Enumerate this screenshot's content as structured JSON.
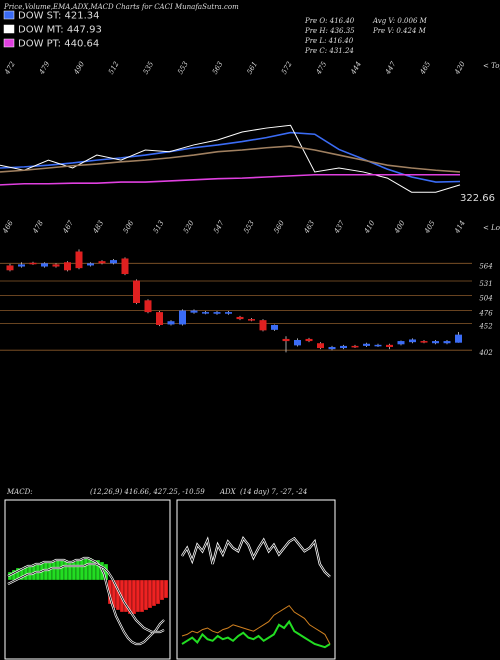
{
  "header": {
    "title": "Price,Volume,EMA,ADX,MACD Charts for CACI MunafaSutra.com",
    "legend": [
      {
        "name": "DOW ST: 421.34",
        "color": "#3b6cf5"
      },
      {
        "name": "DOW MT: 447.93",
        "color": "#ffffff"
      },
      {
        "name": "DOW PT: 440.64",
        "color": "#e040e0"
      }
    ],
    "pre": [
      "Pre  O: 416.40",
      "Pre  H: 436.35",
      "Pre  L: 416.40",
      "Pre  C: 431.24"
    ],
    "volume": [
      "Avg V: 0.006  M",
      "Pre  V: 0.424  M"
    ]
  },
  "chart_data": [
    {
      "type": "line",
      "ylim": [
        300,
        620
      ],
      "annotation": "322.66",
      "tops_label": "< Tops",
      "lows_label": "< Lows",
      "top_labels": [
        "472",
        "479",
        "490",
        "512",
        "535",
        "553",
        "563",
        "561",
        "572",
        "475",
        "444",
        "447",
        "465",
        "420"
      ],
      "bottom_labels": [
        "466",
        "478",
        "467",
        "483",
        "506",
        "513",
        "520",
        "547",
        "553",
        "560",
        "463",
        "437",
        "410",
        "400",
        "405",
        "414"
      ],
      "series": [
        {
          "name": "DOW ST: 421.34",
          "color": "#3b6cf5",
          "values": [
            428,
            430,
            433,
            437,
            442,
            446,
            451,
            457,
            464,
            469,
            475,
            482,
            491,
            488,
            461,
            444,
            426,
            412,
            403,
            404
          ]
        },
        {
          "name": "DOW MT: 447.93",
          "color": "#ffffff",
          "values": [
            433,
            424,
            442,
            428,
            451,
            442,
            460,
            457,
            469,
            478,
            492,
            499,
            504,
            421,
            428,
            421,
            410,
            385,
            385,
            398
          ]
        },
        {
          "name": "DOW PT: 440.64",
          "color": "#e040e0",
          "values": [
            398,
            400,
            400,
            401,
            401,
            403,
            403,
            405,
            407,
            409,
            410,
            412,
            414,
            416,
            416,
            416,
            416,
            416,
            416,
            416
          ]
        },
        {
          "name": "EMA",
          "color": "#a08060",
          "values": [
            421,
            424,
            428,
            432,
            435,
            439,
            442,
            446,
            451,
            457,
            460,
            464,
            467,
            460,
            451,
            442,
            433,
            428,
            424,
            421
          ]
        }
      ]
    },
    {
      "type": "candlestick",
      "ylim": [
        380,
        600
      ],
      "yticks": [
        564,
        531,
        504,
        476,
        452,
        402
      ],
      "up_color": "#3b6cf5",
      "down_color": "#e02020",
      "candles": [
        [
          560,
          563,
          549,
          551
        ],
        [
          558,
          566,
          556,
          562
        ],
        [
          565,
          567,
          561,
          563
        ],
        [
          558,
          566,
          556,
          564
        ],
        [
          562,
          564,
          556,
          558
        ],
        [
          566,
          568,
          549,
          551
        ],
        [
          586,
          590,
          553,
          555
        ],
        [
          560,
          566,
          558,
          564
        ],
        [
          568,
          570,
          562,
          564
        ],
        [
          564,
          572,
          562,
          570
        ],
        [
          573,
          575,
          542,
          544
        ],
        [
          532,
          534,
          488,
          490
        ],
        [
          495,
          497,
          471,
          473
        ],
        [
          473,
          475,
          447,
          449
        ],
        [
          450,
          458,
          448,
          456
        ],
        [
          450,
          478,
          448,
          476
        ],
        [
          472,
          478,
          470,
          476
        ],
        [
          471,
          475,
          469,
          473
        ],
        [
          470,
          475,
          468,
          473
        ],
        [
          470,
          475,
          468,
          473
        ],
        [
          464,
          466,
          458,
          460
        ],
        [
          460,
          462,
          456,
          458
        ],
        [
          458,
          460,
          437,
          439
        ],
        [
          440,
          450,
          438,
          449
        ],
        [
          423,
          428,
          398,
          419
        ],
        [
          411,
          424,
          409,
          421
        ],
        [
          423,
          425,
          417,
          419
        ],
        [
          415,
          417,
          404,
          406
        ],
        [
          404,
          410,
          402,
          408
        ],
        [
          406,
          412,
          404,
          410
        ],
        [
          410,
          412,
          406,
          408
        ],
        [
          410,
          416,
          408,
          414
        ],
        [
          410,
          414,
          408,
          412
        ],
        [
          412,
          414,
          404,
          408
        ],
        [
          413,
          420,
          411,
          419
        ],
        [
          417,
          424,
          415,
          422
        ],
        [
          419,
          421,
          415,
          417
        ],
        [
          415,
          421,
          413,
          419
        ],
        [
          415,
          421,
          413,
          419
        ],
        [
          416,
          436,
          416,
          431
        ]
      ]
    },
    {
      "type": "macd",
      "title": "MACD:",
      "subtitle": "(12,26,9) 416.66, 427.25, -10.59",
      "ylim": [
        -40,
        40
      ],
      "histogram": [
        4,
        5,
        6,
        6,
        7,
        7,
        8,
        8,
        9,
        9,
        9,
        9,
        10,
        10,
        10,
        9,
        9,
        10,
        10,
        11,
        11,
        10,
        10,
        9,
        8,
        -12,
        -14,
        -15,
        -16,
        -16,
        -17,
        -17,
        -16,
        -16,
        -15,
        -14,
        -13,
        -12,
        -10,
        -9
      ],
      "macd": [
        2,
        3,
        4,
        5,
        6,
        7,
        7,
        8,
        8,
        9,
        9,
        9,
        10,
        10,
        10,
        9,
        9,
        10,
        10,
        11,
        11,
        10,
        9,
        7,
        3,
        -5,
        -12,
        -18,
        -22,
        -26,
        -29,
        -31,
        -32,
        -32,
        -31,
        -29,
        -27,
        -25,
        -22,
        -20
      ],
      "signal": [
        0,
        1,
        2,
        3,
        4,
        5,
        5,
        6,
        6,
        7,
        7,
        8,
        8,
        8,
        9,
        9,
        9,
        9,
        9,
        9,
        10,
        10,
        10,
        9,
        8,
        6,
        3,
        -1,
        -5,
        -9,
        -12,
        -15,
        -18,
        -20,
        -22,
        -23,
        -24,
        -24,
        -24,
        -23
      ],
      "up_color": "#22dd22",
      "down_color": "#ee2222"
    },
    {
      "type": "adx",
      "title": "ADX",
      "subtitle": "(14 day) 7, -27, -24",
      "ylim": [
        0,
        100
      ],
      "series": [
        {
          "color": "#ffffff",
          "values": [
            65,
            70,
            62,
            72,
            68,
            75,
            60,
            72,
            66,
            74,
            70,
            68,
            76,
            72,
            64,
            70,
            75,
            68,
            72,
            66,
            70,
            74,
            76,
            72,
            68,
            70,
            74,
            60,
            55,
            52
          ]
        },
        {
          "color": "#22dd22",
          "values": [
            10,
            12,
            14,
            11,
            16,
            13,
            12,
            15,
            13,
            14,
            12,
            15,
            17,
            14,
            13,
            15,
            12,
            14,
            16,
            22,
            20,
            24,
            18,
            16,
            14,
            12,
            10,
            9,
            8,
            10
          ]
        },
        {
          "color": "#d08020",
          "values": [
            15,
            16,
            18,
            17,
            19,
            20,
            18,
            17,
            19,
            20,
            22,
            21,
            20,
            19,
            18,
            20,
            22,
            24,
            28,
            30,
            32,
            34,
            30,
            28,
            26,
            22,
            20,
            18,
            16,
            10
          ]
        }
      ]
    }
  ]
}
